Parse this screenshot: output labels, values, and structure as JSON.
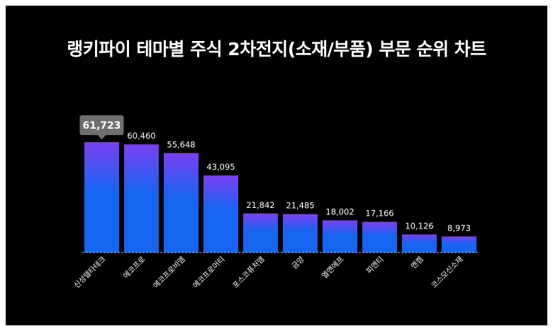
{
  "chart_data": {
    "type": "bar",
    "title": "랭키파이 테마별 주식 2차전지(소재/부품) 부문 순위 차트",
    "categories": [
      "신성델타테크",
      "에코프로",
      "에코프로비엠",
      "에코프로머티",
      "포스코퓨처엠",
      "금양",
      "엘앤에프",
      "피엔티",
      "엔켐",
      "코스모신소재"
    ],
    "values": [
      61723,
      60460,
      55648,
      43095,
      21842,
      21485,
      18002,
      17166,
      10126,
      8973
    ],
    "value_labels": [
      "61,723",
      "60,460",
      "55,648",
      "43,095",
      "21,842",
      "21,485",
      "18,002",
      "17,166",
      "10,126",
      "8,973"
    ],
    "highlight_index": 0,
    "xlabel": "",
    "ylabel": "",
    "ylim": [
      0,
      61723
    ],
    "grid": false,
    "colors": {
      "background": "#000000",
      "bar_top": "#7b3ff2",
      "bar_bottom": "#1565f0",
      "badge": "#6f6f6f",
      "baseline": "#bfbfbf",
      "text": "#ffffff"
    }
  }
}
